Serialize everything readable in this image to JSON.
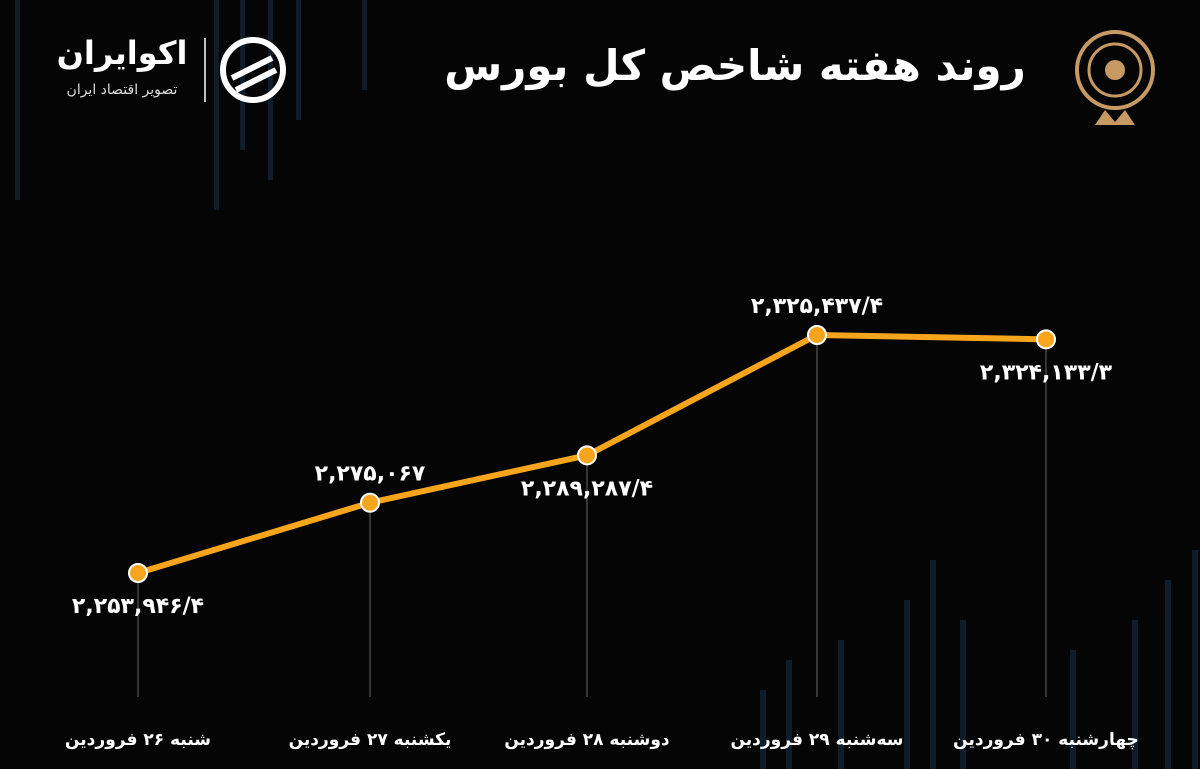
{
  "brand": {
    "name": "اکوایران",
    "tagline": "تصویر اقتصاد ایران"
  },
  "chart_data": {
    "type": "line",
    "title": "روند هفته شاخص کل بورس",
    "categories": [
      "شنبه ۲۶ فروردین",
      "یکشنبه ۲۷ فروردین",
      "دوشنبه ۲۸ فروردین",
      "سه‌شنبه ۲۹ فروردین",
      "چهارشنبه ۳۰ فروردین"
    ],
    "values": [
      2253946.4,
      2275067,
      2289287.4,
      2325437.4,
      2324133.3
    ],
    "value_labels": [
      "۲,۲۵۳,۹۴۶/۴",
      "۲,۲۷۵,۰۶۷",
      "۲,۲۸۹,۲۸۷/۴",
      "۲,۳۲۵,۴۳۷/۴",
      "۲,۳۲۴,۱۳۳/۳"
    ],
    "color": "#f7a51c"
  }
}
